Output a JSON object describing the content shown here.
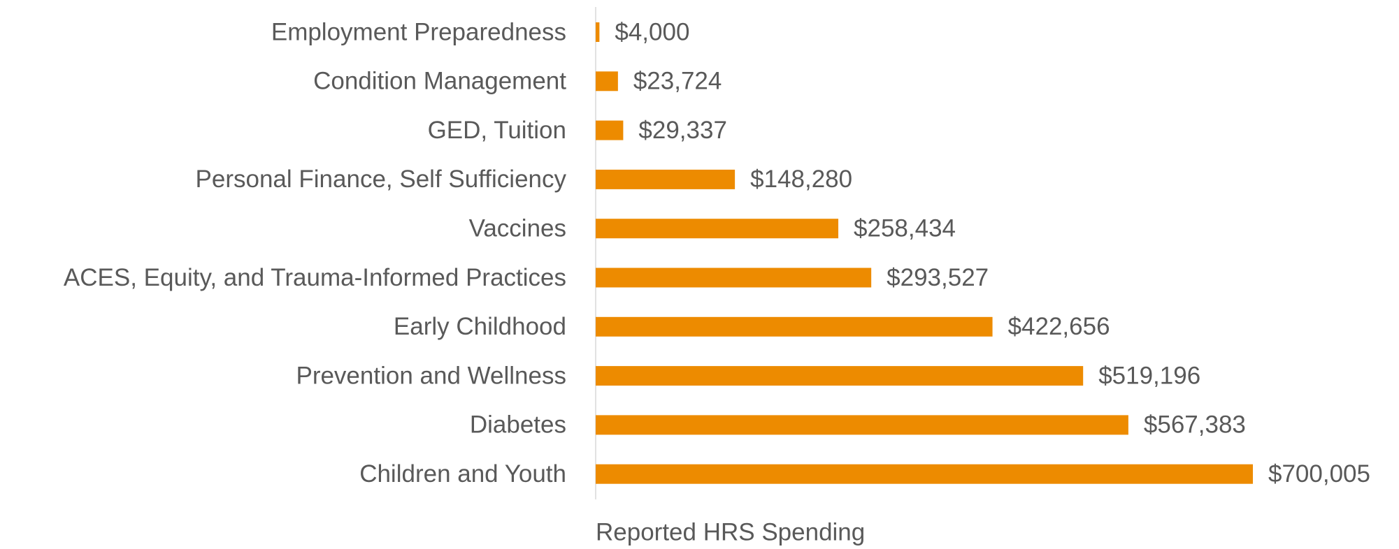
{
  "chart_data": {
    "type": "hbar",
    "x_label": "Reported HRS Spending",
    "categories": [
      "Employment Preparedness",
      "Condition Management",
      "GED, Tuition",
      "Personal Finance, Self Sufficiency",
      "Vaccines",
      "ACES, Equity, and Trauma-Informed Practices",
      "Early Childhood",
      "Prevention and Wellness",
      "Diabetes",
      "Children and Youth"
    ],
    "values": [
      4000,
      23724,
      29337,
      148280,
      258434,
      293527,
      422656,
      519196,
      567383,
      700005
    ],
    "value_labels": [
      "$4,000",
      "$23,724",
      "$29,337",
      "$148,280",
      "$258,434",
      "$293,527",
      "$422,656",
      "$519,196",
      "$567,383",
      "$700,005"
    ],
    "color": "#ED8B00"
  }
}
